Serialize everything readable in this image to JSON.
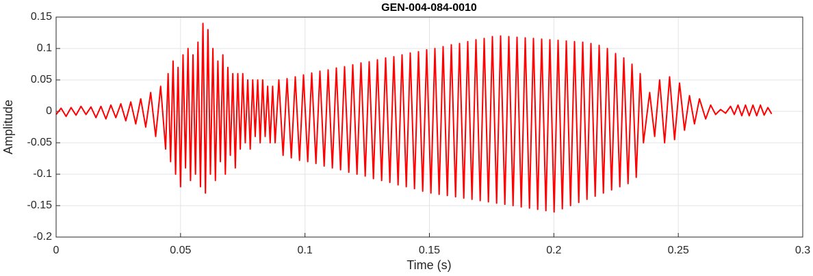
{
  "chart_data": {
    "type": "line",
    "title": "GEN-004-084-0010",
    "x_label": "Time (s)",
    "y_label": "Amplitude",
    "color": "#ff0000",
    "grid": true,
    "xlim": [
      0,
      0.3
    ],
    "xticks": [
      0,
      0.05,
      0.1,
      0.15,
      0.2,
      0.25,
      0.3
    ],
    "ylim": [
      -0.2,
      0.15
    ],
    "yticks": [
      -0.2,
      -0.15,
      -0.1,
      -0.05,
      0,
      0.05,
      0.1,
      0.15
    ],
    "x": [
      0,
      0.002,
      0.004,
      0.006,
      0.008,
      0.01,
      0.012,
      0.014,
      0.016,
      0.018,
      0.02,
      0.022,
      0.024,
      0.026,
      0.028,
      0.03,
      0.032,
      0.034,
      0.036,
      0.038,
      0.04,
      0.042,
      0.044,
      0.045,
      0.046,
      0.047,
      0.048,
      0.049,
      0.05,
      0.051,
      0.052,
      0.053,
      0.054,
      0.055,
      0.056,
      0.057,
      0.058,
      0.059,
      0.06,
      0.061,
      0.062,
      0.063,
      0.064,
      0.065,
      0.066,
      0.067,
      0.068,
      0.069,
      0.07,
      0.071,
      0.072,
      0.073,
      0.074,
      0.075,
      0.076,
      0.077,
      0.078,
      0.079,
      0.08,
      0.081,
      0.082,
      0.083,
      0.084,
      0.085,
      0.086,
      0.087,
      0.088,
      0.0895,
      0.0912,
      0.0928,
      0.0945,
      0.0961,
      0.0978,
      0.0994,
      0.1011,
      0.1027,
      0.1044,
      0.106,
      0.1077,
      0.1093,
      0.111,
      0.1126,
      0.1143,
      0.1159,
      0.1176,
      0.1192,
      0.1209,
      0.1225,
      0.1242,
      0.1258,
      0.1275,
      0.1291,
      0.1308,
      0.1324,
      0.1341,
      0.1357,
      0.1374,
      0.139,
      0.1407,
      0.1423,
      0.144,
      0.1456,
      0.1473,
      0.1489,
      0.1506,
      0.1522,
      0.1539,
      0.1555,
      0.1572,
      0.1588,
      0.1605,
      0.1621,
      0.1638,
      0.1654,
      0.1671,
      0.1687,
      0.1704,
      0.172,
      0.1737,
      0.1753,
      0.177,
      0.1786,
      0.1803,
      0.1819,
      0.1836,
      0.1852,
      0.1869,
      0.1885,
      0.1902,
      0.1918,
      0.1935,
      0.1951,
      0.1968,
      0.1984,
      0.2001,
      0.2017,
      0.2034,
      0.205,
      0.2067,
      0.2083,
      0.21,
      0.2116,
      0.2133,
      0.2149,
      0.2166,
      0.2182,
      0.2199,
      0.2215,
      0.2232,
      0.2248,
      0.2265,
      0.2281,
      0.2298,
      0.2314,
      0.2331,
      0.2347,
      0.236,
      0.2385,
      0.2405,
      0.2425,
      0.2445,
      0.2465,
      0.2485,
      0.2505,
      0.2525,
      0.2545,
      0.2565,
      0.2585,
      0.261,
      0.263,
      0.265,
      0.267,
      0.269,
      0.271,
      0.2725,
      0.274,
      0.2755,
      0.277,
      0.2785,
      0.28,
      0.2815,
      0.283,
      0.2845,
      0.286,
      0.2875
    ],
    "values": [
      -0.005,
      0.005,
      -0.008,
      0.006,
      -0.006,
      0.008,
      -0.005,
      0.007,
      -0.01,
      0.008,
      -0.012,
      0.01,
      -0.01,
      0.012,
      -0.015,
      0.015,
      -0.02,
      0.02,
      -0.025,
      0.03,
      -0.04,
      0.04,
      -0.06,
      0.06,
      -0.08,
      0.08,
      -0.1,
      0.07,
      -0.12,
      0.09,
      -0.09,
      0.1,
      -0.11,
      0.09,
      -0.1,
      0.11,
      -0.12,
      0.14,
      -0.13,
      0.13,
      -0.1,
      0.1,
      -0.11,
      0.08,
      -0.08,
      0.09,
      -0.1,
      0.07,
      -0.07,
      0.06,
      -0.09,
      0.06,
      -0.06,
      0.06,
      -0.05,
      0.05,
      -0.06,
      0.05,
      -0.04,
      0.05,
      -0.05,
      0.05,
      -0.04,
      0.04,
      -0.05,
      0.04,
      -0.05,
      0.05,
      -0.07,
      0.052,
      -0.074,
      0.055,
      -0.078,
      0.058,
      -0.08,
      0.061,
      -0.083,
      0.064,
      -0.087,
      0.066,
      -0.09,
      0.069,
      -0.093,
      0.071,
      -0.097,
      0.074,
      -0.1,
      0.077,
      -0.103,
      0.079,
      -0.107,
      0.082,
      -0.11,
      0.085,
      -0.113,
      0.087,
      -0.117,
      0.09,
      -0.12,
      0.093,
      -0.123,
      0.095,
      -0.127,
      0.098,
      -0.13,
      0.1,
      -0.132,
      0.103,
      -0.134,
      0.106,
      -0.136,
      0.108,
      -0.138,
      0.111,
      -0.14,
      0.114,
      -0.142,
      0.116,
      -0.144,
      0.119,
      -0.146,
      0.12,
      -0.148,
      0.119,
      -0.15,
      0.118,
      -0.152,
      0.117,
      -0.154,
      0.116,
      -0.156,
      0.115,
      -0.158,
      0.114,
      -0.16,
      0.113,
      -0.155,
      0.112,
      -0.15,
      0.111,
      -0.145,
      0.11,
      -0.14,
      0.108,
      -0.135,
      0.105,
      -0.13,
      0.1,
      -0.125,
      0.092,
      -0.12,
      0.085,
      -0.115,
      0.075,
      -0.105,
      0.06,
      -0.05,
      0.03,
      -0.04,
      0.05,
      -0.05,
      0.055,
      -0.045,
      0.045,
      -0.03,
      0.025,
      -0.02,
      0.02,
      -0.012,
      0.01,
      -0.005,
      0.003,
      -0.003,
      0.008,
      -0.005,
      0.01,
      -0.007,
      0.01,
      -0.007,
      0.01,
      -0.007,
      0.01,
      -0.006,
      0.006,
      -0.004
    ]
  }
}
